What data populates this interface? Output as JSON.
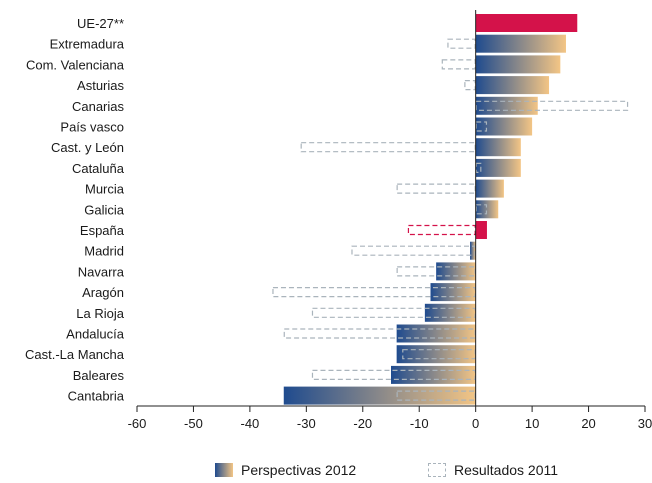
{
  "chart_data": {
    "type": "bar",
    "orientation": "horizontal",
    "categories": [
      "UE-27**",
      "Extremadura",
      "Com. Valenciana",
      "Asturias",
      "Canarias",
      "País vasco",
      "Cast. y León",
      "Cataluña",
      "Murcia",
      "Galicia",
      "España",
      "Madrid",
      "Navarra",
      "Aragón",
      "La Rioja",
      "Andalucía",
      "Cast.-La Mancha",
      "Baleares",
      "Cantabria"
    ],
    "series": [
      {
        "name": "Perspectivas 2012",
        "style": "gradient-fill",
        "values": [
          18,
          16,
          15,
          13,
          11,
          10,
          8,
          8,
          5,
          4,
          2,
          -1,
          -7,
          -8,
          -9,
          -14,
          -14,
          -15,
          -34
        ]
      },
      {
        "name": "Resultados 2011",
        "style": "dashed-outline",
        "values": [
          12,
          -5,
          -6,
          -2,
          27,
          2,
          -31,
          1,
          -14,
          2,
          -12,
          -22,
          -14,
          -36,
          -29,
          -34,
          -13,
          -29,
          -14
        ]
      }
    ],
    "highlight_categories": [
      "UE-27**",
      "España"
    ],
    "xlim": [
      -60,
      30
    ],
    "xticks": [
      "-60",
      "-50",
      "-40",
      "-30",
      "-20",
      "-10",
      "0",
      "10",
      "20",
      "30"
    ],
    "grid": false,
    "legend_position": "bottom",
    "colors": {
      "gradient_start": "#1f4b8e",
      "gradient_end": "#f3c585",
      "highlight": "#d4124a",
      "outline": "#aab4bc",
      "axis": "#222222"
    }
  }
}
